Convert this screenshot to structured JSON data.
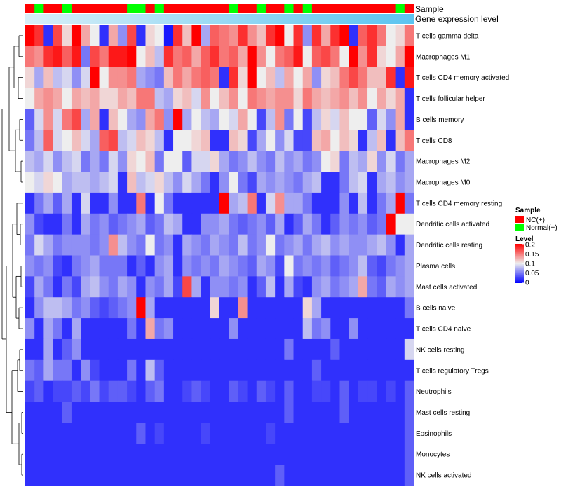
{
  "chart_data": {
    "type": "heatmap",
    "annotation_rows": [
      "Sample",
      "Gene expression level"
    ],
    "sample_groups": [
      "NC",
      "Normal",
      "NC",
      "NC",
      "Normal",
      "NC",
      "NC",
      "NC",
      "NC",
      "NC",
      "NC",
      "Normal",
      "Normal",
      "NC",
      "Normal",
      "NC",
      "NC",
      "NC",
      "NC",
      "NC",
      "NC",
      "NC",
      "Normal",
      "NC",
      "NC",
      "Normal",
      "NC",
      "NC",
      "Normal",
      "NC",
      "Normal",
      "NC",
      "NC",
      "NC",
      "NC",
      "NC",
      "NC",
      "NC",
      "NC",
      "NC",
      "Normal",
      "NC"
    ],
    "rows": [
      "T cells gamma delta",
      "Macrophages M1",
      "T cells CD4 memory activated",
      "T cells follicular helper",
      "B cells memory",
      "T cells CD8",
      "Macrophages M2",
      "Macrophages M0",
      "T cells CD4 memory resting",
      "Dendritic cells activated",
      "Dendritic cells resting",
      "Plasma cells",
      "Mast cells activated",
      "B cells naive",
      "T cells CD4 naive",
      "NK cells resting",
      "T cells regulatory  Tregs",
      "Neutrophils",
      "Mast cells resting",
      "Eosinophils",
      "Monocytes",
      "NK cells activated"
    ],
    "values": [
      [
        0.2,
        0.18,
        0.02,
        0.17,
        0.11,
        0.2,
        0.13,
        0.1,
        0.02,
        0.13,
        0.06,
        0.17,
        0.02,
        0.11,
        0.1,
        0.01,
        0.18,
        0.12,
        0.2,
        0.07,
        0.16,
        0.15,
        0.14,
        0.18,
        0.14,
        0.12,
        0.18,
        0.2,
        0.1,
        0.18,
        0.06,
        0.18,
        0.13,
        0.18,
        0.2,
        0.02,
        0.16,
        0.18,
        0.15,
        0.1,
        0.11,
        0.15
      ],
      [
        0.15,
        0.14,
        0.18,
        0.19,
        0.16,
        0.19,
        0.05,
        0.17,
        0.15,
        0.19,
        0.19,
        0.2,
        0.1,
        0.12,
        0.08,
        0.18,
        0.15,
        0.16,
        0.13,
        0.16,
        0.18,
        0.15,
        0.16,
        0.13,
        0.2,
        0.14,
        0.1,
        0.15,
        0.16,
        0.19,
        0.1,
        0.16,
        0.17,
        0.15,
        0.1,
        0.2,
        0.14,
        0.18,
        0.11,
        0.1,
        0.13,
        0.2
      ],
      [
        0.11,
        0.07,
        0.12,
        0.08,
        0.09,
        0.06,
        0.09,
        0.2,
        0.1,
        0.14,
        0.14,
        0.15,
        0.07,
        0.06,
        0.05,
        0.12,
        0.15,
        0.13,
        0.15,
        0.16,
        0.15,
        0.02,
        0.18,
        0.11,
        0.2,
        0.1,
        0.12,
        0.08,
        0.13,
        0.1,
        0.13,
        0.06,
        0.11,
        0.12,
        0.15,
        0.17,
        0.15,
        0.12,
        0.12,
        0.18,
        0.02,
        0.19
      ],
      [
        0.1,
        0.13,
        0.14,
        0.13,
        0.1,
        0.13,
        0.12,
        0.13,
        0.11,
        0.11,
        0.13,
        0.12,
        0.15,
        0.15,
        0.08,
        0.07,
        0.11,
        0.12,
        0.09,
        0.14,
        0.1,
        0.12,
        0.14,
        0.1,
        0.15,
        0.14,
        0.13,
        0.14,
        0.14,
        0.11,
        0.15,
        0.13,
        0.12,
        0.13,
        0.14,
        0.12,
        0.14,
        0.1,
        0.13,
        0.11,
        0.13,
        0.02
      ],
      [
        0.04,
        0.09,
        0.14,
        0.09,
        0.15,
        0.17,
        0.07,
        0.13,
        0.02,
        0.12,
        0.1,
        0.07,
        0.06,
        0.13,
        0.15,
        0.06,
        0.2,
        0.07,
        0.1,
        0.08,
        0.07,
        0.1,
        0.09,
        0.13,
        0.1,
        0.03,
        0.08,
        0.14,
        0.05,
        0.1,
        0.03,
        0.08,
        0.11,
        0.09,
        0.12,
        0.1,
        0.1,
        0.04,
        0.09,
        0.06,
        0.13,
        0.02
      ],
      [
        0.05,
        0.08,
        0.16,
        0.09,
        0.1,
        0.12,
        0.09,
        0.07,
        0.16,
        0.17,
        0.08,
        0.09,
        0.12,
        0.11,
        0.08,
        0.02,
        0.1,
        0.1,
        0.11,
        0.12,
        0.02,
        0.02,
        0.12,
        0.11,
        0.03,
        0.07,
        0.1,
        0.06,
        0.09,
        0.03,
        0.03,
        0.12,
        0.13,
        0.1,
        0.12,
        0.11,
        0.02,
        0.08,
        0.12,
        0.02,
        0.12,
        0.15
      ],
      [
        0.08,
        0.07,
        0.09,
        0.06,
        0.08,
        0.09,
        0.05,
        0.07,
        0.05,
        0.09,
        0.06,
        0.11,
        0.1,
        0.12,
        0.05,
        0.1,
        0.1,
        0.04,
        0.09,
        0.09,
        0.11,
        0.07,
        0.05,
        0.06,
        0.08,
        0.06,
        0.05,
        0.08,
        0.06,
        0.07,
        0.05,
        0.06,
        0.1,
        0.11,
        0.05,
        0.08,
        0.07,
        0.11,
        0.06,
        0.09,
        0.05,
        0.07
      ],
      [
        0.1,
        0.09,
        0.11,
        0.1,
        0.07,
        0.08,
        0.08,
        0.07,
        0.08,
        0.09,
        0.02,
        0.12,
        0.08,
        0.09,
        0.11,
        0.08,
        0.06,
        0.09,
        0.07,
        0.05,
        0.02,
        0.06,
        0.1,
        0.05,
        0.03,
        0.07,
        0.06,
        0.07,
        0.06,
        0.05,
        0.07,
        0.08,
        0.02,
        0.02,
        0.05,
        0.08,
        0.09,
        0.02,
        0.07,
        0.08,
        0.06,
        0.07
      ],
      [
        0.02,
        0.05,
        0.07,
        0.04,
        0.07,
        0.02,
        0.09,
        0.02,
        0.02,
        0.06,
        0.02,
        0.02,
        0.15,
        0.02,
        0.1,
        0.05,
        0.02,
        0.02,
        0.02,
        0.02,
        0.02,
        0.2,
        0.07,
        0.08,
        0.15,
        0.02,
        0.09,
        0.14,
        0.07,
        0.07,
        0.05,
        0.02,
        0.02,
        0.02,
        0.06,
        0.02,
        0.08,
        0.02,
        0.05,
        0.07,
        0.2,
        0.05
      ],
      [
        0.06,
        0.03,
        0.02,
        0.02,
        0.05,
        0.02,
        0.07,
        0.05,
        0.06,
        0.04,
        0.05,
        0.06,
        0.07,
        0.04,
        0.05,
        0.08,
        0.07,
        0.02,
        0.02,
        0.06,
        0.06,
        0.07,
        0.05,
        0.04,
        0.05,
        0.06,
        0.04,
        0.07,
        0.02,
        0.04,
        0.07,
        0.05,
        0.02,
        0.04,
        0.06,
        0.05,
        0.06,
        0.04,
        0.05,
        0.2,
        0.1,
        0.1
      ],
      [
        0.05,
        0.09,
        0.07,
        0.05,
        0.06,
        0.06,
        0.06,
        0.05,
        0.06,
        0.14,
        0.08,
        0.06,
        0.05,
        0.1,
        0.05,
        0.06,
        0.02,
        0.07,
        0.06,
        0.05,
        0.07,
        0.06,
        0.05,
        0.08,
        0.05,
        0.06,
        0.1,
        0.05,
        0.06,
        0.07,
        0.05,
        0.07,
        0.08,
        0.06,
        0.07,
        0.06,
        0.06,
        0.07,
        0.08,
        0.06,
        0.02,
        0.07
      ],
      [
        0.06,
        0.05,
        0.06,
        0.03,
        0.02,
        0.05,
        0.06,
        0.07,
        0.05,
        0.05,
        0.05,
        0.02,
        0.04,
        0.02,
        0.06,
        0.07,
        0.02,
        0.06,
        0.05,
        0.06,
        0.05,
        0.07,
        0.06,
        0.05,
        0.04,
        0.07,
        0.06,
        0.03,
        0.1,
        0.05,
        0.06,
        0.05,
        0.06,
        0.04,
        0.05,
        0.06,
        0.08,
        0.04,
        0.03,
        0.05,
        0.06,
        0.07
      ],
      [
        0.03,
        0.07,
        0.05,
        0.02,
        0.05,
        0.03,
        0.07,
        0.08,
        0.06,
        0.05,
        0.07,
        0.06,
        0.02,
        0.06,
        0.05,
        0.07,
        0.03,
        0.17,
        0.07,
        0.02,
        0.06,
        0.06,
        0.05,
        0.06,
        0.02,
        0.04,
        0.08,
        0.02,
        0.07,
        0.03,
        0.02,
        0.06,
        0.07,
        0.05,
        0.06,
        0.07,
        0.13,
        0.05,
        0.04,
        0.07,
        0.06,
        0.07
      ],
      [
        0.02,
        0.06,
        0.08,
        0.08,
        0.07,
        0.05,
        0.06,
        0.04,
        0.03,
        0.04,
        0.05,
        0.06,
        0.2,
        0.07,
        0.02,
        0.02,
        0.02,
        0.02,
        0.02,
        0.02,
        0.11,
        0.02,
        0.02,
        0.14,
        0.02,
        0.02,
        0.02,
        0.02,
        0.02,
        0.02,
        0.11,
        0.07,
        0.02,
        0.02,
        0.02,
        0.02,
        0.02,
        0.02,
        0.02,
        0.02,
        0.02,
        0.05
      ],
      [
        0.06,
        0.02,
        0.07,
        0.05,
        0.02,
        0.07,
        0.02,
        0.02,
        0.02,
        0.02,
        0.02,
        0.05,
        0.02,
        0.13,
        0.05,
        0.06,
        0.02,
        0.02,
        0.02,
        0.02,
        0.02,
        0.02,
        0.06,
        0.02,
        0.02,
        0.02,
        0.02,
        0.02,
        0.02,
        0.02,
        0.08,
        0.05,
        0.06,
        0.02,
        0.02,
        0.06,
        0.02,
        0.02,
        0.02,
        0.02,
        0.02,
        0.02
      ],
      [
        0.02,
        0.02,
        0.07,
        0.02,
        0.04,
        0.06,
        0.02,
        0.02,
        0.02,
        0.02,
        0.02,
        0.02,
        0.02,
        0.02,
        0.02,
        0.02,
        0.02,
        0.02,
        0.02,
        0.02,
        0.02,
        0.02,
        0.02,
        0.02,
        0.02,
        0.02,
        0.02,
        0.02,
        0.05,
        0.02,
        0.02,
        0.02,
        0.02,
        0.04,
        0.02,
        0.02,
        0.02,
        0.02,
        0.02,
        0.02,
        0.02,
        0.09
      ],
      [
        0.05,
        0.04,
        0.07,
        0.05,
        0.05,
        0.02,
        0.06,
        0.03,
        0.02,
        0.02,
        0.02,
        0.05,
        0.02,
        0.08,
        0.04,
        0.02,
        0.02,
        0.02,
        0.02,
        0.02,
        0.02,
        0.02,
        0.02,
        0.02,
        0.02,
        0.02,
        0.02,
        0.02,
        0.02,
        0.02,
        0.02,
        0.04,
        0.02,
        0.02,
        0.02,
        0.02,
        0.02,
        0.02,
        0.02,
        0.02,
        0.02,
        0.02
      ],
      [
        0.03,
        0.04,
        0.02,
        0.03,
        0.03,
        0.04,
        0.03,
        0.05,
        0.03,
        0.04,
        0.04,
        0.03,
        0.02,
        0.04,
        0.05,
        0.02,
        0.02,
        0.03,
        0.04,
        0.03,
        0.02,
        0.02,
        0.04,
        0.03,
        0.02,
        0.04,
        0.03,
        0.02,
        0.04,
        0.02,
        0.02,
        0.03,
        0.03,
        0.02,
        0.04,
        0.02,
        0.03,
        0.03,
        0.02,
        0.03,
        0.02,
        0.04
      ],
      [
        0.02,
        0.02,
        0.02,
        0.02,
        0.04,
        0.02,
        0.02,
        0.02,
        0.02,
        0.02,
        0.02,
        0.02,
        0.02,
        0.02,
        0.02,
        0.02,
        0.02,
        0.02,
        0.02,
        0.02,
        0.02,
        0.02,
        0.02,
        0.02,
        0.02,
        0.02,
        0.02,
        0.02,
        0.04,
        0.02,
        0.02,
        0.02,
        0.02,
        0.02,
        0.04,
        0.02,
        0.02,
        0.02,
        0.02,
        0.02,
        0.02,
        0.04
      ],
      [
        0.02,
        0.02,
        0.02,
        0.02,
        0.02,
        0.02,
        0.02,
        0.02,
        0.02,
        0.02,
        0.02,
        0.02,
        0.04,
        0.02,
        0.03,
        0.02,
        0.02,
        0.02,
        0.02,
        0.03,
        0.02,
        0.02,
        0.02,
        0.02,
        0.02,
        0.02,
        0.03,
        0.02,
        0.02,
        0.02,
        0.02,
        0.02,
        0.02,
        0.02,
        0.02,
        0.02,
        0.02,
        0.02,
        0.02,
        0.02,
        0.02,
        0.04
      ],
      [
        0.02,
        0.02,
        0.02,
        0.02,
        0.02,
        0.02,
        0.02,
        0.02,
        0.02,
        0.02,
        0.02,
        0.02,
        0.02,
        0.02,
        0.02,
        0.02,
        0.02,
        0.02,
        0.02,
        0.02,
        0.02,
        0.02,
        0.02,
        0.02,
        0.02,
        0.02,
        0.02,
        0.02,
        0.02,
        0.02,
        0.02,
        0.02,
        0.02,
        0.02,
        0.02,
        0.02,
        0.02,
        0.02,
        0.02,
        0.02,
        0.02,
        0.04
      ],
      [
        0.02,
        0.02,
        0.02,
        0.02,
        0.02,
        0.02,
        0.02,
        0.02,
        0.02,
        0.02,
        0.02,
        0.02,
        0.02,
        0.02,
        0.02,
        0.02,
        0.02,
        0.02,
        0.02,
        0.02,
        0.02,
        0.02,
        0.02,
        0.02,
        0.02,
        0.02,
        0.02,
        0.04,
        0.02,
        0.02,
        0.02,
        0.02,
        0.02,
        0.02,
        0.02,
        0.02,
        0.02,
        0.02,
        0.02,
        0.02,
        0.02,
        0.04
      ]
    ],
    "color_scale": {
      "stops": [
        0,
        0.1,
        0.2
      ],
      "colors": [
        "#0000ff",
        "#eeeeee",
        "#ff0000"
      ],
      "legend_ticks": [
        "0.2",
        "0.15",
        "0.1",
        "0.05",
        "0"
      ]
    },
    "legend": {
      "sample_title": "Sample",
      "sample_entries": [
        {
          "key": "NC",
          "label": "NC(+)",
          "color": "#ff0000"
        },
        {
          "key": "Normal",
          "label": "Normal(+)",
          "color": "#00ff00"
        }
      ],
      "level_title": "Level"
    },
    "gradient_colors": [
      "#d8eff8",
      "#5bc4f0"
    ]
  }
}
